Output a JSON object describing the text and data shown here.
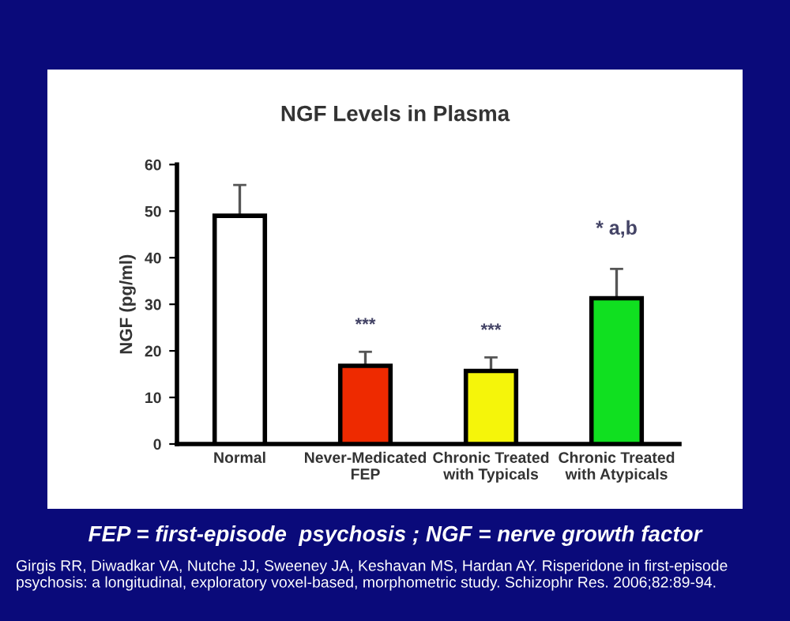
{
  "chart_data": {
    "type": "bar",
    "title": "NGF Levels in Plasma",
    "ylabel": "NGF (pg/ml)",
    "categories": [
      "Normal",
      "Never-Medicated\nFEP",
      "Chronic Treated\nwith Typicals",
      "Chronic Treated\nwith Atypicals"
    ],
    "values": [
      49,
      16.8,
      15.7,
      31.3
    ],
    "errors": [
      [
        49,
        55.6
      ],
      [
        16.8,
        19.8
      ],
      [
        15.7,
        18.6
      ],
      [
        31.3,
        37.6
      ]
    ],
    "colors": [
      "#ffffff",
      "#ee2a00",
      "#f5f50a",
      "#10e020"
    ],
    "ylim": [
      0,
      60
    ],
    "yticks": [
      0,
      10,
      20,
      30,
      40,
      50,
      60
    ],
    "grid": false,
    "legend": false,
    "value_labels": [
      null,
      "***",
      "***",
      "* a,b"
    ],
    "annotations": [
      "FEP = first-episode  psychosis ; NGF = nerve growth factor",
      "Girgis RR, Diwadkar VA, Nutche JJ, Sweeney JA, Keshavan MS, Hardan AY. Risperidone in first-episode psychosis: a longitudinal, exploratory voxel-based, morphometric study. Schizophr Res. 2006;82:89-94."
    ]
  }
}
